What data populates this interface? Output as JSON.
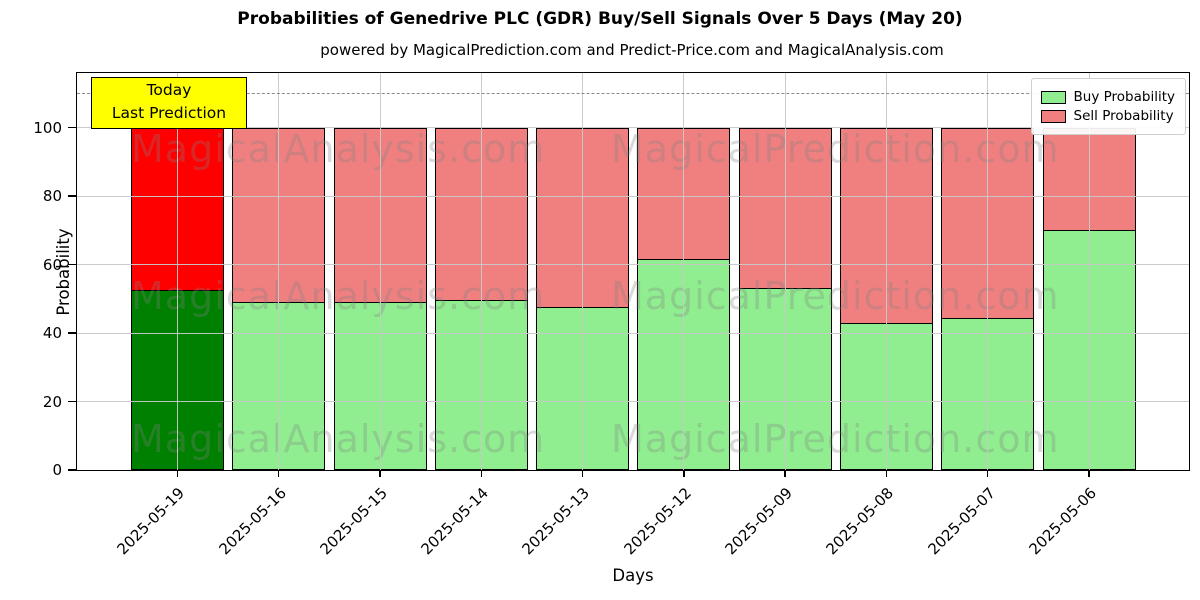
{
  "title": "Probabilities of Genedrive PLC (GDR) Buy/Sell Signals Over 5 Days (May 20)",
  "subtitle": "powered by MagicalPrediction.com and Predict-Price.com and MagicalAnalysis.com",
  "axes": {
    "ylabel": "Probability",
    "xlabel": "Days",
    "yticks": [
      0,
      20,
      40,
      60,
      80,
      100
    ],
    "dashed_line_value": 110
  },
  "annotation": {
    "line1": "Today",
    "line2": "Last Prediction",
    "bg_color": "#ffff00"
  },
  "legend": {
    "items": [
      {
        "label": "Buy Probability",
        "color": "#90ee90"
      },
      {
        "label": "Sell Probability",
        "color": "#f08080"
      }
    ]
  },
  "watermarks": {
    "left_text": "MagicalAnalysis.com",
    "right_text": "MagicalPrediction.com"
  },
  "chart_data": {
    "type": "bar",
    "stacked": true,
    "title": "Probabilities of Genedrive PLC (GDR) Buy/Sell Signals Over 5 Days (May 20)",
    "xlabel": "Days",
    "ylabel": "Probability",
    "categories": [
      "2025-05-19",
      "2025-05-16",
      "2025-05-15",
      "2025-05-14",
      "2025-05-13",
      "2025-05-12",
      "2025-05-09",
      "2025-05-08",
      "2025-05-07",
      "2025-05-06"
    ],
    "series": [
      {
        "name": "Buy Probability",
        "values": [
          52.5,
          49,
          49,
          49.5,
          47.5,
          61.5,
          53,
          43,
          44.5,
          70
        ]
      },
      {
        "name": "Sell Probability",
        "values": [
          47.5,
          51,
          51,
          50.5,
          52.5,
          38.5,
          47,
          57,
          55.5,
          30
        ]
      }
    ],
    "bar_totals": [
      100,
      100,
      100,
      100,
      100,
      100,
      100,
      100,
      100,
      100
    ],
    "ylim": [
      0,
      116
    ],
    "grid": true,
    "legend_position": "upper right",
    "today_index": 0,
    "colors": {
      "buy": "#90ee90",
      "sell": "#f08080",
      "today_buy": "#008000",
      "today_sell": "#ff0000",
      "bar_edge": "#000000"
    },
    "annotation_on_today": "Today / Last Prediction",
    "reference_line": {
      "y": 110,
      "style": "dashed",
      "color": "#8a8a8a"
    }
  }
}
